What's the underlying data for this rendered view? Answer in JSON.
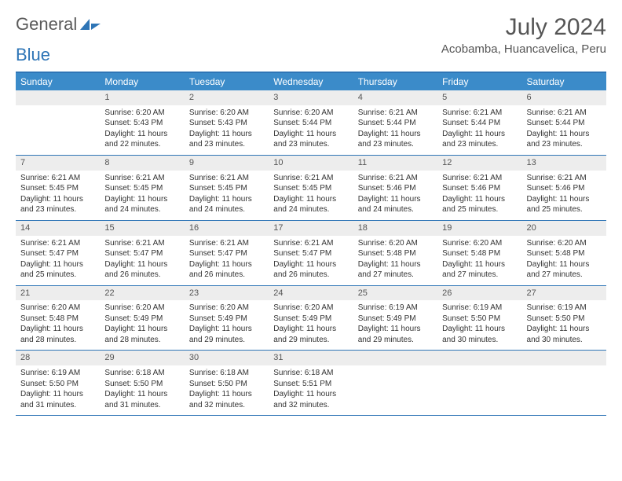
{
  "brand": {
    "part1": "General",
    "part2": "Blue"
  },
  "title": "July 2024",
  "location": "Acobamba, Huancavelica, Peru",
  "day_names": [
    "Sunday",
    "Monday",
    "Tuesday",
    "Wednesday",
    "Thursday",
    "Friday",
    "Saturday"
  ],
  "colors": {
    "header_bg": "#3b8bc9",
    "border": "#2e75b6",
    "num_bg": "#ededed",
    "text": "#333333",
    "title": "#555555"
  },
  "weeks": [
    [
      {
        "n": "",
        "sr": "",
        "ss": "",
        "dl": ""
      },
      {
        "n": "1",
        "sr": "6:20 AM",
        "ss": "5:43 PM",
        "dl": "11 hours and 22 minutes."
      },
      {
        "n": "2",
        "sr": "6:20 AM",
        "ss": "5:43 PM",
        "dl": "11 hours and 23 minutes."
      },
      {
        "n": "3",
        "sr": "6:20 AM",
        "ss": "5:44 PM",
        "dl": "11 hours and 23 minutes."
      },
      {
        "n": "4",
        "sr": "6:21 AM",
        "ss": "5:44 PM",
        "dl": "11 hours and 23 minutes."
      },
      {
        "n": "5",
        "sr": "6:21 AM",
        "ss": "5:44 PM",
        "dl": "11 hours and 23 minutes."
      },
      {
        "n": "6",
        "sr": "6:21 AM",
        "ss": "5:44 PM",
        "dl": "11 hours and 23 minutes."
      }
    ],
    [
      {
        "n": "7",
        "sr": "6:21 AM",
        "ss": "5:45 PM",
        "dl": "11 hours and 23 minutes."
      },
      {
        "n": "8",
        "sr": "6:21 AM",
        "ss": "5:45 PM",
        "dl": "11 hours and 24 minutes."
      },
      {
        "n": "9",
        "sr": "6:21 AM",
        "ss": "5:45 PM",
        "dl": "11 hours and 24 minutes."
      },
      {
        "n": "10",
        "sr": "6:21 AM",
        "ss": "5:45 PM",
        "dl": "11 hours and 24 minutes."
      },
      {
        "n": "11",
        "sr": "6:21 AM",
        "ss": "5:46 PM",
        "dl": "11 hours and 24 minutes."
      },
      {
        "n": "12",
        "sr": "6:21 AM",
        "ss": "5:46 PM",
        "dl": "11 hours and 25 minutes."
      },
      {
        "n": "13",
        "sr": "6:21 AM",
        "ss": "5:46 PM",
        "dl": "11 hours and 25 minutes."
      }
    ],
    [
      {
        "n": "14",
        "sr": "6:21 AM",
        "ss": "5:47 PM",
        "dl": "11 hours and 25 minutes."
      },
      {
        "n": "15",
        "sr": "6:21 AM",
        "ss": "5:47 PM",
        "dl": "11 hours and 26 minutes."
      },
      {
        "n": "16",
        "sr": "6:21 AM",
        "ss": "5:47 PM",
        "dl": "11 hours and 26 minutes."
      },
      {
        "n": "17",
        "sr": "6:21 AM",
        "ss": "5:47 PM",
        "dl": "11 hours and 26 minutes."
      },
      {
        "n": "18",
        "sr": "6:20 AM",
        "ss": "5:48 PM",
        "dl": "11 hours and 27 minutes."
      },
      {
        "n": "19",
        "sr": "6:20 AM",
        "ss": "5:48 PM",
        "dl": "11 hours and 27 minutes."
      },
      {
        "n": "20",
        "sr": "6:20 AM",
        "ss": "5:48 PM",
        "dl": "11 hours and 27 minutes."
      }
    ],
    [
      {
        "n": "21",
        "sr": "6:20 AM",
        "ss": "5:48 PM",
        "dl": "11 hours and 28 minutes."
      },
      {
        "n": "22",
        "sr": "6:20 AM",
        "ss": "5:49 PM",
        "dl": "11 hours and 28 minutes."
      },
      {
        "n": "23",
        "sr": "6:20 AM",
        "ss": "5:49 PM",
        "dl": "11 hours and 29 minutes."
      },
      {
        "n": "24",
        "sr": "6:20 AM",
        "ss": "5:49 PM",
        "dl": "11 hours and 29 minutes."
      },
      {
        "n": "25",
        "sr": "6:19 AM",
        "ss": "5:49 PM",
        "dl": "11 hours and 29 minutes."
      },
      {
        "n": "26",
        "sr": "6:19 AM",
        "ss": "5:50 PM",
        "dl": "11 hours and 30 minutes."
      },
      {
        "n": "27",
        "sr": "6:19 AM",
        "ss": "5:50 PM",
        "dl": "11 hours and 30 minutes."
      }
    ],
    [
      {
        "n": "28",
        "sr": "6:19 AM",
        "ss": "5:50 PM",
        "dl": "11 hours and 31 minutes."
      },
      {
        "n": "29",
        "sr": "6:18 AM",
        "ss": "5:50 PM",
        "dl": "11 hours and 31 minutes."
      },
      {
        "n": "30",
        "sr": "6:18 AM",
        "ss": "5:50 PM",
        "dl": "11 hours and 32 minutes."
      },
      {
        "n": "31",
        "sr": "6:18 AM",
        "ss": "5:51 PM",
        "dl": "11 hours and 32 minutes."
      },
      {
        "n": "",
        "sr": "",
        "ss": "",
        "dl": ""
      },
      {
        "n": "",
        "sr": "",
        "ss": "",
        "dl": ""
      },
      {
        "n": "",
        "sr": "",
        "ss": "",
        "dl": ""
      }
    ]
  ],
  "labels": {
    "sunrise": "Sunrise: ",
    "sunset": "Sunset: ",
    "daylight": "Daylight: "
  }
}
